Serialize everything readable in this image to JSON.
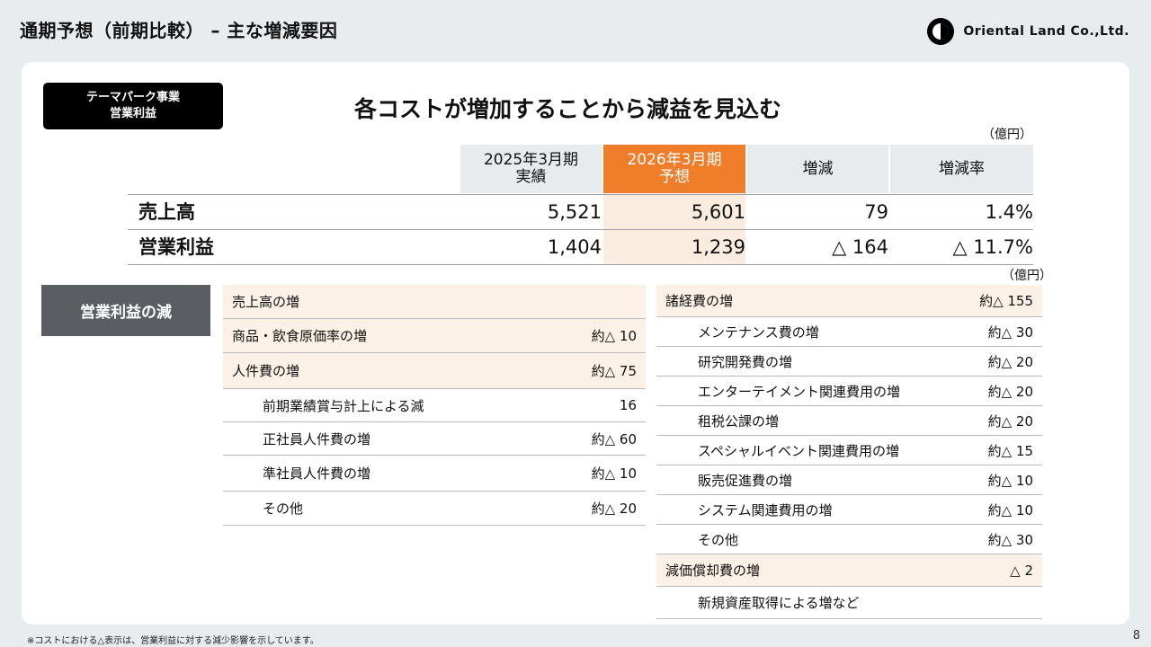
{
  "header": {
    "title": "通期予想（前期比較） – 主な増減要因",
    "logo_text": "Oriental Land Co.,Ltd."
  },
  "segment_badge": {
    "line1": "テーマパーク事業",
    "line2": "営業利益"
  },
  "headline": "各コストが増加することから減益を見込む",
  "unit": "（億円）",
  "summary": {
    "columns": {
      "prev_line1": "2025年3月期",
      "prev_line2": "実績",
      "fcst_line1": "2026年3月期",
      "fcst_line2": "予想",
      "diff": "増減",
      "rate": "増減率"
    },
    "rows": [
      {
        "label": "売上高",
        "prev": "5,521",
        "fcst": "5,601",
        "diff": "79",
        "rate": "1.4%"
      },
      {
        "label": "営業利益",
        "prev": "1,404",
        "fcst": "1,239",
        "diff": "△ 164",
        "rate": "△ 11.7%"
      }
    ]
  },
  "reasons": {
    "label": "営業利益の減",
    "left": [
      {
        "label": "売上高の増",
        "value": ""
      },
      {
        "label": "商品・飲食原価率の増",
        "value": "約△ 10"
      },
      {
        "label": "人件費の増",
        "value": "約△ 75"
      },
      {
        "label": "前期業績賞与計上による減",
        "value": "16"
      },
      {
        "label": "正社員人件費の増",
        "value": "約△ 60"
      },
      {
        "label": "準社員人件費の増",
        "value": "約△ 10"
      },
      {
        "label": "その他",
        "value": "約△ 20"
      }
    ],
    "right": [
      {
        "label": "諸経費の増",
        "value": "約△ 155"
      },
      {
        "label": "メンテナンス費の増",
        "value": "約△ 30"
      },
      {
        "label": "研究開発費の増",
        "value": "約△ 20"
      },
      {
        "label": "エンターテイメント関連費用の増",
        "value": "約△ 20"
      },
      {
        "label": "租税公課の増",
        "value": "約△ 20"
      },
      {
        "label": "スペシャルイベント関連費用の増",
        "value": "約△ 15"
      },
      {
        "label": "販売促進費の増",
        "value": "約△ 10"
      },
      {
        "label": "システム関連費用の増",
        "value": "約△ 10"
      },
      {
        "label": "その他",
        "value": "約△ 30"
      },
      {
        "label": "減価償却費の増",
        "value": "△ 2"
      },
      {
        "label": "新規資産取得による増など",
        "value": ""
      }
    ]
  },
  "footnote": "※コストにおける△表示は、営業利益に対する減少影響を示しています。",
  "page_number": "8",
  "colors": {
    "accent": "#f07d2a",
    "highlight_bg": "#fcf1e7",
    "badge_bg": "#000000",
    "reason_label_bg": "#5a5d61"
  }
}
